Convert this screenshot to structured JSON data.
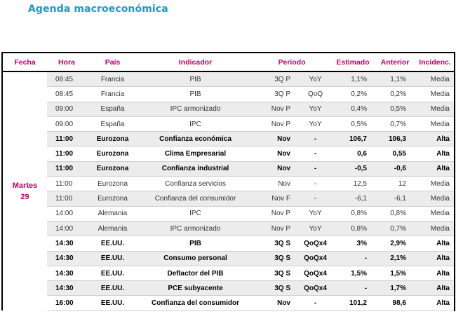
{
  "title": "Agenda macroeconómica",
  "headers": {
    "fecha": "Fecha",
    "hora": "Hora",
    "pais": "País",
    "indicador": "Indicador",
    "periodo": "Periodo",
    "estimado": "Estimado",
    "anterior": "Anterior",
    "incidencia": "Incidenc."
  },
  "fecha_line1": "Martes",
  "fecha_line2": "29",
  "rows": [
    {
      "hora": "08:45",
      "pais": "Francia",
      "indicador": "PIB",
      "periodo": "3Q P",
      "tipo": "YoY",
      "estimado": "1,1%",
      "anterior": "1,1%",
      "incidencia": "Media"
    },
    {
      "hora": "08:45",
      "pais": "Francia",
      "indicador": "PIB",
      "periodo": "3Q P",
      "tipo": "QoQ",
      "estimado": "0,2%",
      "anterior": "0,2%",
      "incidencia": "Media"
    },
    {
      "hora": "09:00",
      "pais": "España",
      "indicador": "IPC armonizado",
      "periodo": "Nov P",
      "tipo": "YoY",
      "estimado": "0,4%",
      "anterior": "0,5%",
      "incidencia": "Media"
    },
    {
      "hora": "09:00",
      "pais": "España",
      "indicador": "IPC",
      "periodo": "Nov P",
      "tipo": "YoY",
      "estimado": "0,5%",
      "anterior": "0,7%",
      "incidencia": "Media"
    },
    {
      "hora": "11:00",
      "pais": "Eurozona",
      "indicador": "Confianza económica",
      "periodo": "Nov",
      "tipo": "-",
      "estimado": "106,7",
      "anterior": "106,3",
      "incidencia": "Alta"
    },
    {
      "hora": "11:00",
      "pais": "Eurozona",
      "indicador": "Clima Empresarial",
      "periodo": "Nov",
      "tipo": "-",
      "estimado": "0,6",
      "anterior": "0,55",
      "incidencia": "Alta"
    },
    {
      "hora": "11:00",
      "pais": "Eurozona",
      "indicador": "Confianza industrial",
      "periodo": "Nov",
      "tipo": "-",
      "estimado": "-0,5",
      "anterior": "-0,6",
      "incidencia": "Alta"
    },
    {
      "hora": "11:00",
      "pais": "Eurozona",
      "indicador": "Confianza servicios",
      "periodo": "Nov",
      "tipo": "-",
      "estimado": "12,5",
      "anterior": "12",
      "incidencia": "Media"
    },
    {
      "hora": "11:00",
      "pais": "Eurozona",
      "indicador": "Confianza del consumidor",
      "periodo": "Nov F",
      "tipo": "-",
      "estimado": "-6,1",
      "anterior": "-6,1",
      "incidencia": "Media"
    },
    {
      "hora": "14:00",
      "pais": "Alemania",
      "indicador": "IPC",
      "periodo": "Nov P",
      "tipo": "YoY",
      "estimado": "0,8%",
      "anterior": "0,8%",
      "incidencia": "Media"
    },
    {
      "hora": "14:00",
      "pais": "Alemania",
      "indicador": "IPC armonizado",
      "periodo": "Nov P",
      "tipo": "YoY",
      "estimado": "0,8%",
      "anterior": "0,7%",
      "incidencia": "Media"
    },
    {
      "hora": "14:30",
      "pais": "EE.UU.",
      "indicador": "PIB",
      "periodo": "3Q S",
      "tipo": "QoQx4",
      "estimado": "3%",
      "anterior": "2,9%",
      "incidencia": "Alta"
    },
    {
      "hora": "14:30",
      "pais": "EE.UU.",
      "indicador": "Consumo personal",
      "periodo": "3Q S",
      "tipo": "QoQx4",
      "estimado": "-",
      "anterior": "2,1%",
      "incidencia": "Alta"
    },
    {
      "hora": "14:30",
      "pais": "EE.UU.",
      "indicador": "Deflactor del PIB",
      "periodo": "3Q S",
      "tipo": "QoQx4",
      "estimado": "1,5%",
      "anterior": "1,5%",
      "incidencia": "Alta"
    },
    {
      "hora": "14:30",
      "pais": "EE.UU.",
      "indicador": "PCE subyacente",
      "periodo": "3Q S",
      "tipo": "QoQx4",
      "estimado": "-",
      "anterior": "1,7%",
      "incidencia": "Alta"
    },
    {
      "hora": "16:00",
      "pais": "EE.UU.",
      "indicador": "Confianza del consumidor",
      "periodo": "Nov",
      "tipo": "-",
      "estimado": "101,2",
      "anterior": "98,6",
      "incidencia": "Alta"
    }
  ]
}
